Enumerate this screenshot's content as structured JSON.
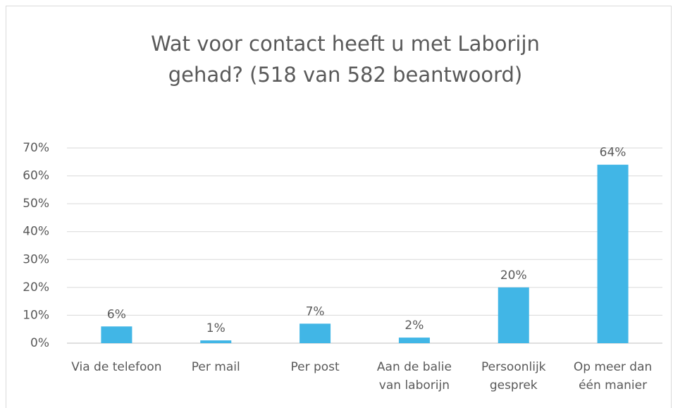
{
  "chart_data": {
    "type": "bar",
    "title": "Wat voor contact heeft u met Laborijn gehad? (518 van 582 beantwoord)",
    "categories": [
      "Via de telefoon",
      "Per mail",
      "Per post",
      "Aan de balie van laborijn",
      "Persoonlijk gesprek",
      "Op meer dan één manier"
    ],
    "values": [
      6,
      1,
      7,
      2,
      20,
      64
    ],
    "value_labels": [
      "6%",
      "1%",
      "7%",
      "2%",
      "20%",
      "64%"
    ],
    "color": "#41b6e6",
    "ylim": [
      0,
      70
    ],
    "yticks": [
      {
        "value": 0,
        "label": "0%"
      },
      {
        "value": 10,
        "label": "10%"
      },
      {
        "value": 20,
        "label": "20%"
      },
      {
        "value": 30,
        "label": "30%"
      },
      {
        "value": 40,
        "label": "40%"
      },
      {
        "value": 50,
        "label": "50%"
      },
      {
        "value": 60,
        "label": "60%"
      },
      {
        "value": 70,
        "label": "70%"
      }
    ],
    "grid": true
  }
}
